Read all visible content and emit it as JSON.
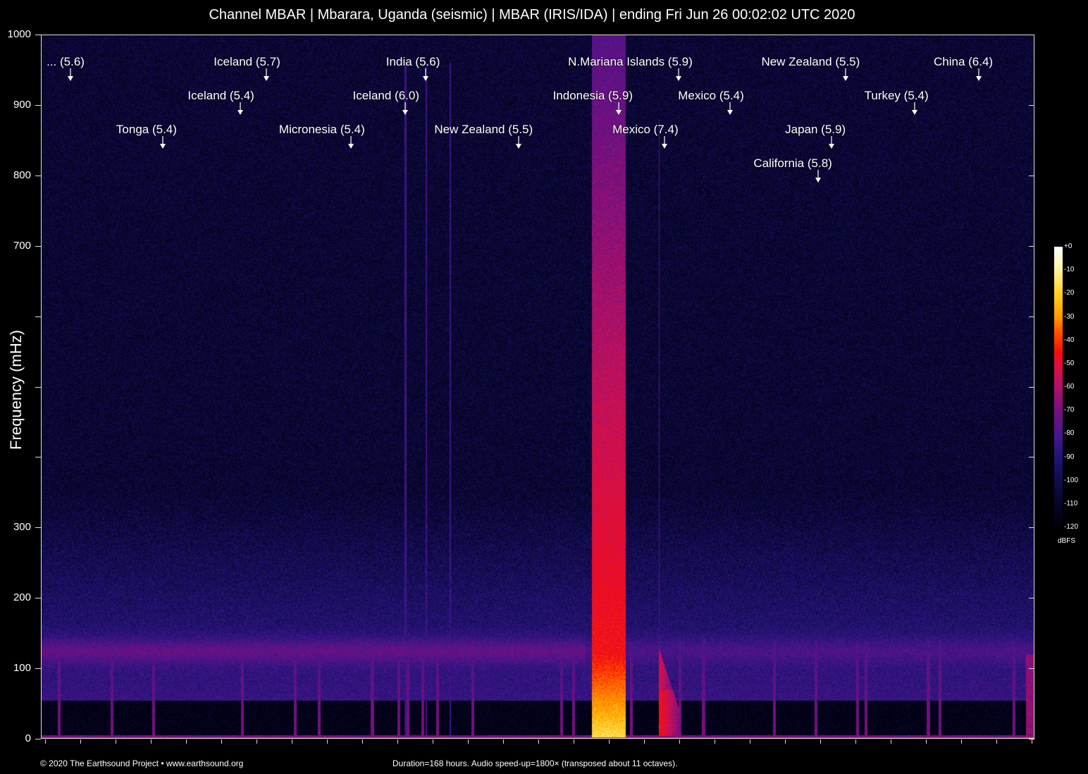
{
  "title": "Channel MBAR | Mbarara, Uganda (seismic) | MBAR (IRIS/IDA) | ending Fri Jun 26 00:02:02 UTC 2020",
  "footer": {
    "copyright": "© 2020 The Earthsound Project • www.earthsound.org",
    "info": "Duration=168 hours. Audio speed-up=1800× (transposed about 11 octaves)."
  },
  "chart_data": {
    "type": "heatmap",
    "title": "Channel MBAR | Mbarara, Uganda (seismic) | MBAR (IRIS/IDA) | ending Fri Jun 26 00:02:02 UTC 2020",
    "ylabel": "Frequency (mHz)",
    "xlabel": "",
    "ylim": [
      0,
      1000
    ],
    "xlim_hours": [
      0,
      168
    ],
    "yticks": [
      0,
      100,
      200,
      300,
      400,
      500,
      600,
      700,
      800,
      900,
      1000
    ],
    "ytick_labels": [
      "0",
      "100",
      "200",
      "300",
      "",
      "",
      "",
      "700",
      "800",
      "900",
      "1000"
    ],
    "colorbar": {
      "label": "dBFS",
      "range": [
        -120,
        0
      ],
      "tick_labels": [
        "+0",
        "-10",
        "-20",
        "-30",
        "-40",
        "-50",
        "-60",
        "-70",
        "-80",
        "-90",
        "-100",
        "-110",
        "-120"
      ],
      "colormap": "inferno-like (black-purple-red-yellow-white)"
    },
    "events": [
      {
        "label": "... (5.6)",
        "hour": 5.0,
        "row": 0
      },
      {
        "label": "Iceland (5.7)",
        "hour": 38.1,
        "row": 0
      },
      {
        "label": "India (5.6)",
        "hour": 65.1,
        "row": 0
      },
      {
        "label": "N.Mariana Islands (5.9)",
        "hour": 107.8,
        "row": 0
      },
      {
        "label": "New Zealand (5.5)",
        "hour": 136.1,
        "row": 0
      },
      {
        "label": "China (6.4)",
        "hour": 158.6,
        "row": 0
      },
      {
        "label": "Iceland (5.4)",
        "hour": 33.7,
        "row": 1
      },
      {
        "label": "Iceland (6.0)",
        "hour": 61.6,
        "row": 1
      },
      {
        "label": "Indonesia (5.9)",
        "hour": 97.7,
        "row": 1
      },
      {
        "label": "Mexico (5.4)",
        "hour": 116.5,
        "row": 1
      },
      {
        "label": "Turkey (5.4)",
        "hour": 147.7,
        "row": 1
      },
      {
        "label": "Tonga (5.4)",
        "hour": 20.6,
        "row": 2
      },
      {
        "label": "Micronesia (5.4)",
        "hour": 52.4,
        "row": 2
      },
      {
        "label": "New Zealand (5.5)",
        "hour": 80.8,
        "row": 2
      },
      {
        "label": "Mexico (7.4)",
        "hour": 105.4,
        "row": 2
      },
      {
        "label": "Japan (5.9)",
        "hour": 133.7,
        "row": 2
      },
      {
        "label": "California (5.8)",
        "hour": 131.4,
        "row": 3
      }
    ],
    "features": [
      {
        "description_hours": [
          93.1,
          98.8
        ],
        "level_dbfs_low_freq": -20,
        "level_dbfs_high_freq": -85
      },
      {
        "band_mhz": 125,
        "level_dbfs": -85
      },
      {
        "mexico_quake_hour": 104.7,
        "level_dbfs": -50
      }
    ]
  }
}
